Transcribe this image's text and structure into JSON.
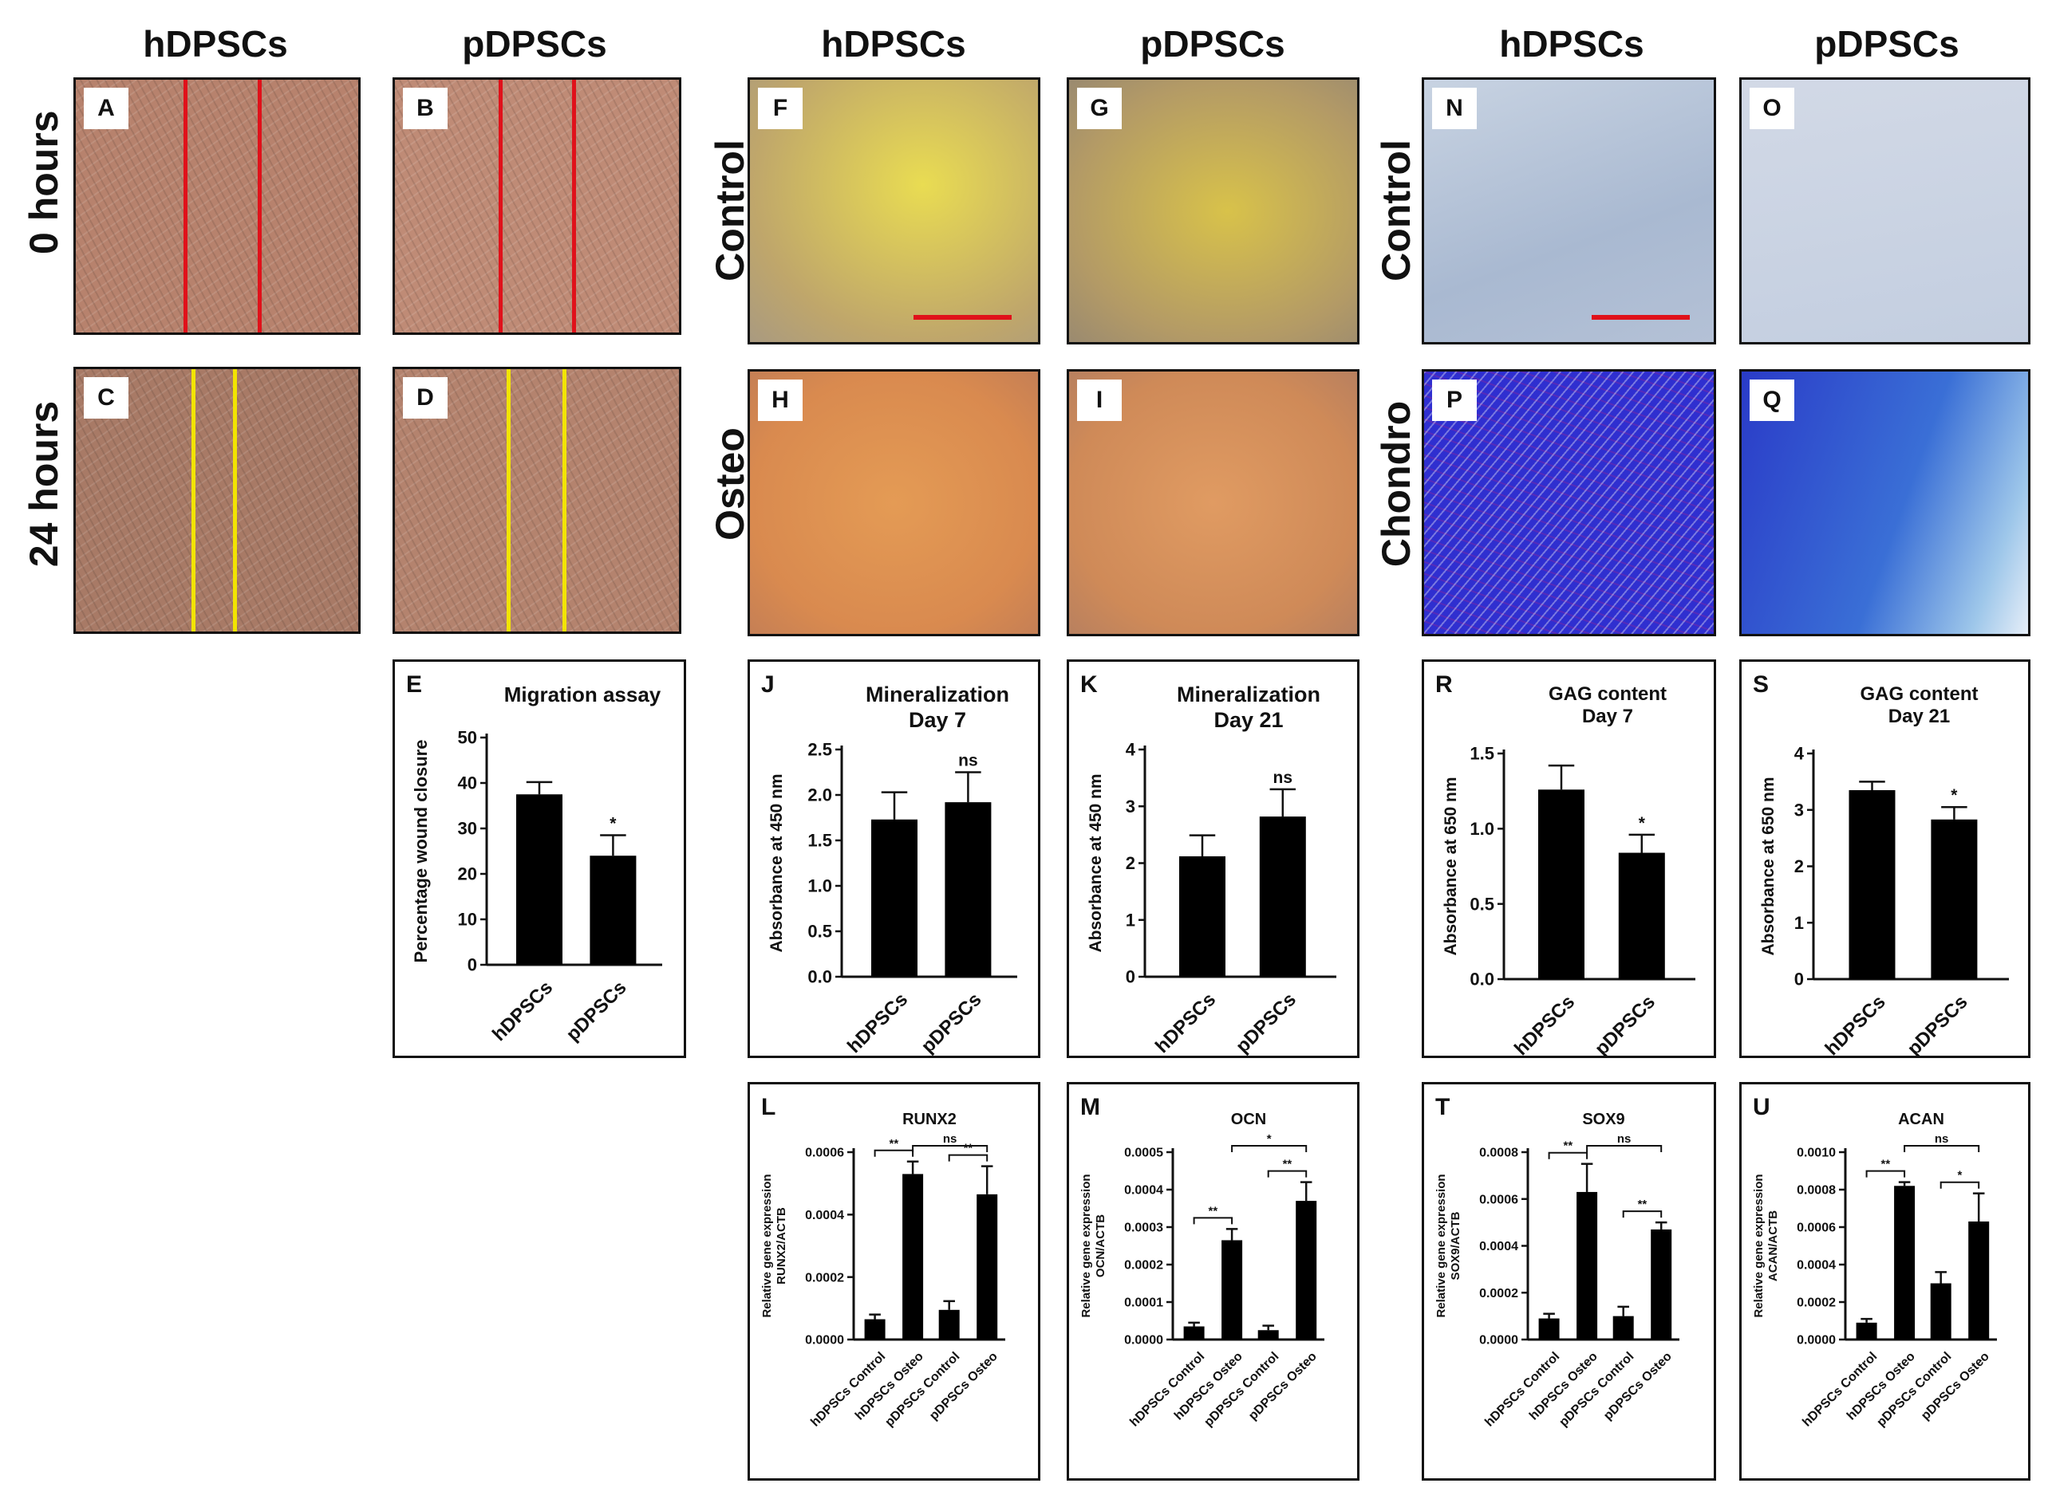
{
  "headers": {
    "col1": "hDPSCs",
    "col2": "pDPSCs",
    "col3": "hDPSCs",
    "col4": "pDPSCs",
    "col5": "hDPSCs",
    "col6": "pDPSCs"
  },
  "row_labels": {
    "r1": "0 hours",
    "r2": "24 hours",
    "r3": "Control",
    "r4": "Osteo",
    "r5": "Control",
    "r6": "Chondro"
  },
  "image_panels": {
    "A": "A",
    "B": "B",
    "C": "C",
    "D": "D",
    "F": "F",
    "G": "G",
    "H": "H",
    "I": "I",
    "N": "N",
    "O": "O",
    "P": "P",
    "Q": "Q"
  },
  "colors": {
    "scale_bar": "#e0111a",
    "wound_line_0h": "#e0111a",
    "wound_line_24h": "#f2e400",
    "bar_fill": "#000000"
  },
  "chart_data": [
    {
      "id": "E",
      "type": "bar",
      "title": "Migration assay",
      "categories": [
        "hDPSCs",
        "pDPSCs"
      ],
      "values": [
        37.5,
        24
      ],
      "errors": [
        2.7,
        4.5
      ],
      "annotations": [
        "",
        "*"
      ],
      "ylabel": "Percentage wound closure",
      "ylim": [
        0,
        50
      ],
      "yticks": [
        "0",
        "10",
        "20",
        "30",
        "40",
        "50"
      ]
    },
    {
      "id": "J",
      "type": "bar",
      "title": [
        "Mineralization",
        "Day 7"
      ],
      "categories": [
        "hDPSCs",
        "pDPSCs"
      ],
      "values": [
        1.73,
        1.92
      ],
      "errors": [
        0.3,
        0.33
      ],
      "annotations": [
        "",
        "ns"
      ],
      "ylabel": "Absorbance at 450 nm",
      "ylim": [
        0,
        2.5
      ],
      "yticks": [
        "0.0",
        "0.5",
        "1.0",
        "1.5",
        "2.0",
        "2.5"
      ]
    },
    {
      "id": "K",
      "type": "bar",
      "title": [
        "Mineralization",
        "Day 21"
      ],
      "categories": [
        "hDPSCs",
        "pDPSCs"
      ],
      "values": [
        2.12,
        2.82
      ],
      "errors": [
        0.37,
        0.48
      ],
      "annotations": [
        "",
        "ns"
      ],
      "ylabel": "Absorbance at 450 nm",
      "ylim": [
        0,
        4
      ],
      "yticks": [
        "0",
        "1",
        "2",
        "3",
        "4"
      ]
    },
    {
      "id": "R",
      "type": "bar",
      "title": [
        "GAG content",
        "Day 7"
      ],
      "categories": [
        "hDPSCs",
        "pDPSCs"
      ],
      "values": [
        1.26,
        0.84
      ],
      "errors": [
        0.16,
        0.12
      ],
      "annotations": [
        "",
        "*"
      ],
      "ylabel": "Absorbance at 650 nm",
      "ylim": [
        0,
        1.5
      ],
      "yticks": [
        "0.0",
        "0.5",
        "1.0",
        "1.5"
      ]
    },
    {
      "id": "S",
      "type": "bar",
      "title": [
        "GAG content",
        "Day 21"
      ],
      "categories": [
        "hDPSCs",
        "pDPSCs"
      ],
      "values": [
        3.35,
        2.83
      ],
      "errors": [
        0.15,
        0.22
      ],
      "annotations": [
        "",
        "*"
      ],
      "ylabel": "Absorbance at 650 nm",
      "ylim": [
        0,
        4
      ],
      "yticks": [
        "0",
        "1",
        "2",
        "3",
        "4"
      ]
    },
    {
      "id": "L",
      "type": "bar",
      "title": "RUNX2",
      "categories": [
        "hDPSCs Control",
        "hDPSCs Osteo",
        "pDPSCs Control",
        "pDPSCs Osteo"
      ],
      "values": [
        6.5e-05,
        0.00053,
        9.5e-05,
        0.000465
      ],
      "errors": [
        1.5e-05,
        4e-05,
        2.8e-05,
        9e-05
      ],
      "ylabel": [
        "Relative gene expression",
        "RUNX2/ACTB"
      ],
      "ylim": [
        0,
        0.0006
      ],
      "yticks": [
        "0.0000",
        "0.0002",
        "0.0004",
        "0.0006"
      ],
      "brackets": [
        {
          "from": 0,
          "to": 1,
          "label": "**"
        },
        {
          "from": 1,
          "to": 3,
          "label": "ns"
        },
        {
          "from": 2,
          "to": 3,
          "label": "**"
        }
      ]
    },
    {
      "id": "M",
      "type": "bar",
      "title": "OCN",
      "categories": [
        "hDPSCs Control",
        "hDPSCs Osteo",
        "pDPSCs Control",
        "pDPSCs Osteo"
      ],
      "values": [
        3.5e-05,
        0.000265,
        2.5e-05,
        0.00037
      ],
      "errors": [
        1e-05,
        3e-05,
        1.2e-05,
        5e-05
      ],
      "ylabel": [
        "Relative gene expression",
        "OCN/ACTB"
      ],
      "ylim": [
        0,
        0.0005
      ],
      "yticks": [
        "0.0000",
        "0.0001",
        "0.0002",
        "0.0003",
        "0.0004",
        "0.0005"
      ],
      "brackets": [
        {
          "from": 0,
          "to": 1,
          "label": "**"
        },
        {
          "from": 1,
          "to": 3,
          "label": "*"
        },
        {
          "from": 2,
          "to": 3,
          "label": "**"
        }
      ]
    },
    {
      "id": "T",
      "type": "bar",
      "title": "SOX9",
      "categories": [
        "hDPSCs Control",
        "hDPSCs Osteo",
        "pDPSCs Control",
        "pDPSCs Osteo"
      ],
      "values": [
        9e-05,
        0.00063,
        0.0001,
        0.00047
      ],
      "errors": [
        2e-05,
        0.00012,
        4e-05,
        3e-05
      ],
      "ylabel": [
        "Relative gene expression",
        "SOX9/ACTB"
      ],
      "ylim": [
        0,
        0.0008
      ],
      "yticks": [
        "0.0000",
        "0.0002",
        "0.0004",
        "0.0006",
        "0.0008"
      ],
      "brackets": [
        {
          "from": 0,
          "to": 1,
          "label": "**"
        },
        {
          "from": 1,
          "to": 3,
          "label": "ns"
        },
        {
          "from": 2,
          "to": 3,
          "label": "**"
        }
      ]
    },
    {
      "id": "U",
      "type": "bar",
      "title": "ACAN",
      "categories": [
        "hDPSCs Control",
        "hDPSCs Osteo",
        "pDPSCs Control",
        "pDPSCs Osteo"
      ],
      "values": [
        9e-05,
        0.00082,
        0.0003,
        0.00063
      ],
      "errors": [
        2e-05,
        2e-05,
        6e-05,
        0.00015
      ],
      "ylabel": [
        "Relative gene expression",
        "ACAN/ACTB"
      ],
      "ylim": [
        0,
        0.001
      ],
      "yticks": [
        "0.0000",
        "0.0002",
        "0.0004",
        "0.0006",
        "0.0008",
        "0.0010"
      ],
      "brackets": [
        {
          "from": 0,
          "to": 1,
          "label": "**"
        },
        {
          "from": 1,
          "to": 3,
          "label": "ns"
        },
        {
          "from": 2,
          "to": 3,
          "label": "*"
        }
      ]
    }
  ]
}
